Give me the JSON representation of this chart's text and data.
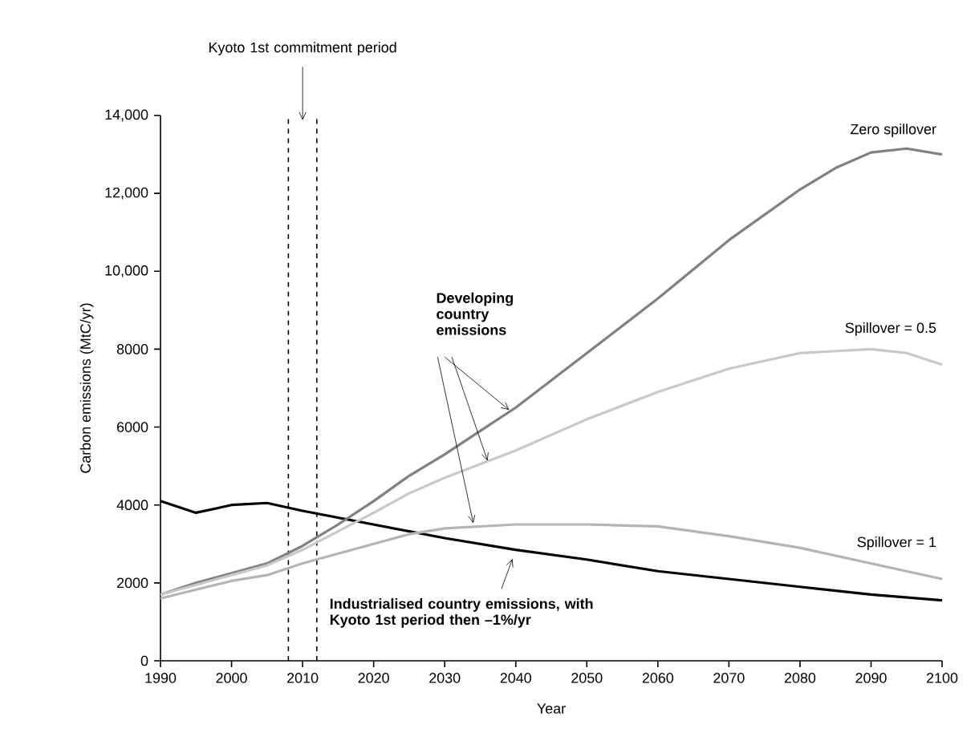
{
  "chart_data": {
    "type": "line",
    "xlabel": "Year",
    "ylabel": "Carbon emissions (MtC/yr)",
    "xlim": [
      1990,
      2100
    ],
    "xticks": [
      1990,
      2000,
      2010,
      2020,
      2030,
      2040,
      2050,
      2060,
      2070,
      2080,
      2090,
      2100
    ],
    "ylim": [
      0,
      14000
    ],
    "yticks": [
      0,
      2000,
      4000,
      6000,
      8000,
      {
        "value": 10000,
        "label": "10,000"
      },
      {
        "value": 12000,
        "label": "12,000"
      },
      {
        "value": 14000,
        "label": "14,000"
      }
    ],
    "marker": "none",
    "grid": false,
    "series": [
      {
        "name": "Industrialised country emissions, with Kyoto 1st period then –1%/yr",
        "color": "#000000",
        "x": [
          1990,
          1995,
          2000,
          2005,
          2010,
          2020,
          2030,
          2040,
          2050,
          2060,
          2070,
          2080,
          2090,
          2100
        ],
        "values": [
          4100,
          3800,
          4000,
          4050,
          3850,
          3500,
          3150,
          2850,
          2600,
          2300,
          2100,
          1900,
          1700,
          1550
        ]
      },
      {
        "name": "Zero spillover",
        "color": "#808080",
        "x": [
          1990,
          1995,
          2000,
          2005,
          2010,
          2015,
          2020,
          2025,
          2030,
          2035,
          2040,
          2050,
          2060,
          2070,
          2080,
          2085,
          2090,
          2095,
          2100
        ],
        "values": [
          1700,
          2000,
          2250,
          2500,
          2950,
          3500,
          4100,
          4750,
          5300,
          5900,
          6500,
          7900,
          9300,
          10800,
          12100,
          12650,
          13050,
          13150,
          13000
        ]
      },
      {
        "name": "Spillover = 0.5",
        "color": "#c8c8c8",
        "x": [
          1990,
          2000,
          2005,
          2010,
          2020,
          2025,
          2030,
          2040,
          2050,
          2060,
          2070,
          2080,
          2090,
          2095,
          2100
        ],
        "values": [
          1700,
          2200,
          2450,
          2850,
          3800,
          4300,
          4700,
          5400,
          6200,
          6900,
          7500,
          7900,
          8000,
          7900,
          7600
        ]
      },
      {
        "name": "Spillover = 1",
        "color": "#b4b4b4",
        "x": [
          1990,
          2000,
          2005,
          2010,
          2020,
          2025,
          2030,
          2040,
          2050,
          2060,
          2070,
          2080,
          2090,
          2100
        ],
        "values": [
          1600,
          2050,
          2200,
          2500,
          3000,
          3250,
          3400,
          3500,
          3500,
          3450,
          3200,
          2900,
          2500,
          2100
        ]
      }
    ],
    "ref_lines": [
      {
        "axis": "x",
        "value": 2008,
        "line_style": "dashed",
        "label": "Kyoto 1st commitment period"
      },
      {
        "axis": "x",
        "value": 2012,
        "line_style": "dashed"
      }
    ],
    "annotations": [
      "Developing country emissions"
    ]
  }
}
